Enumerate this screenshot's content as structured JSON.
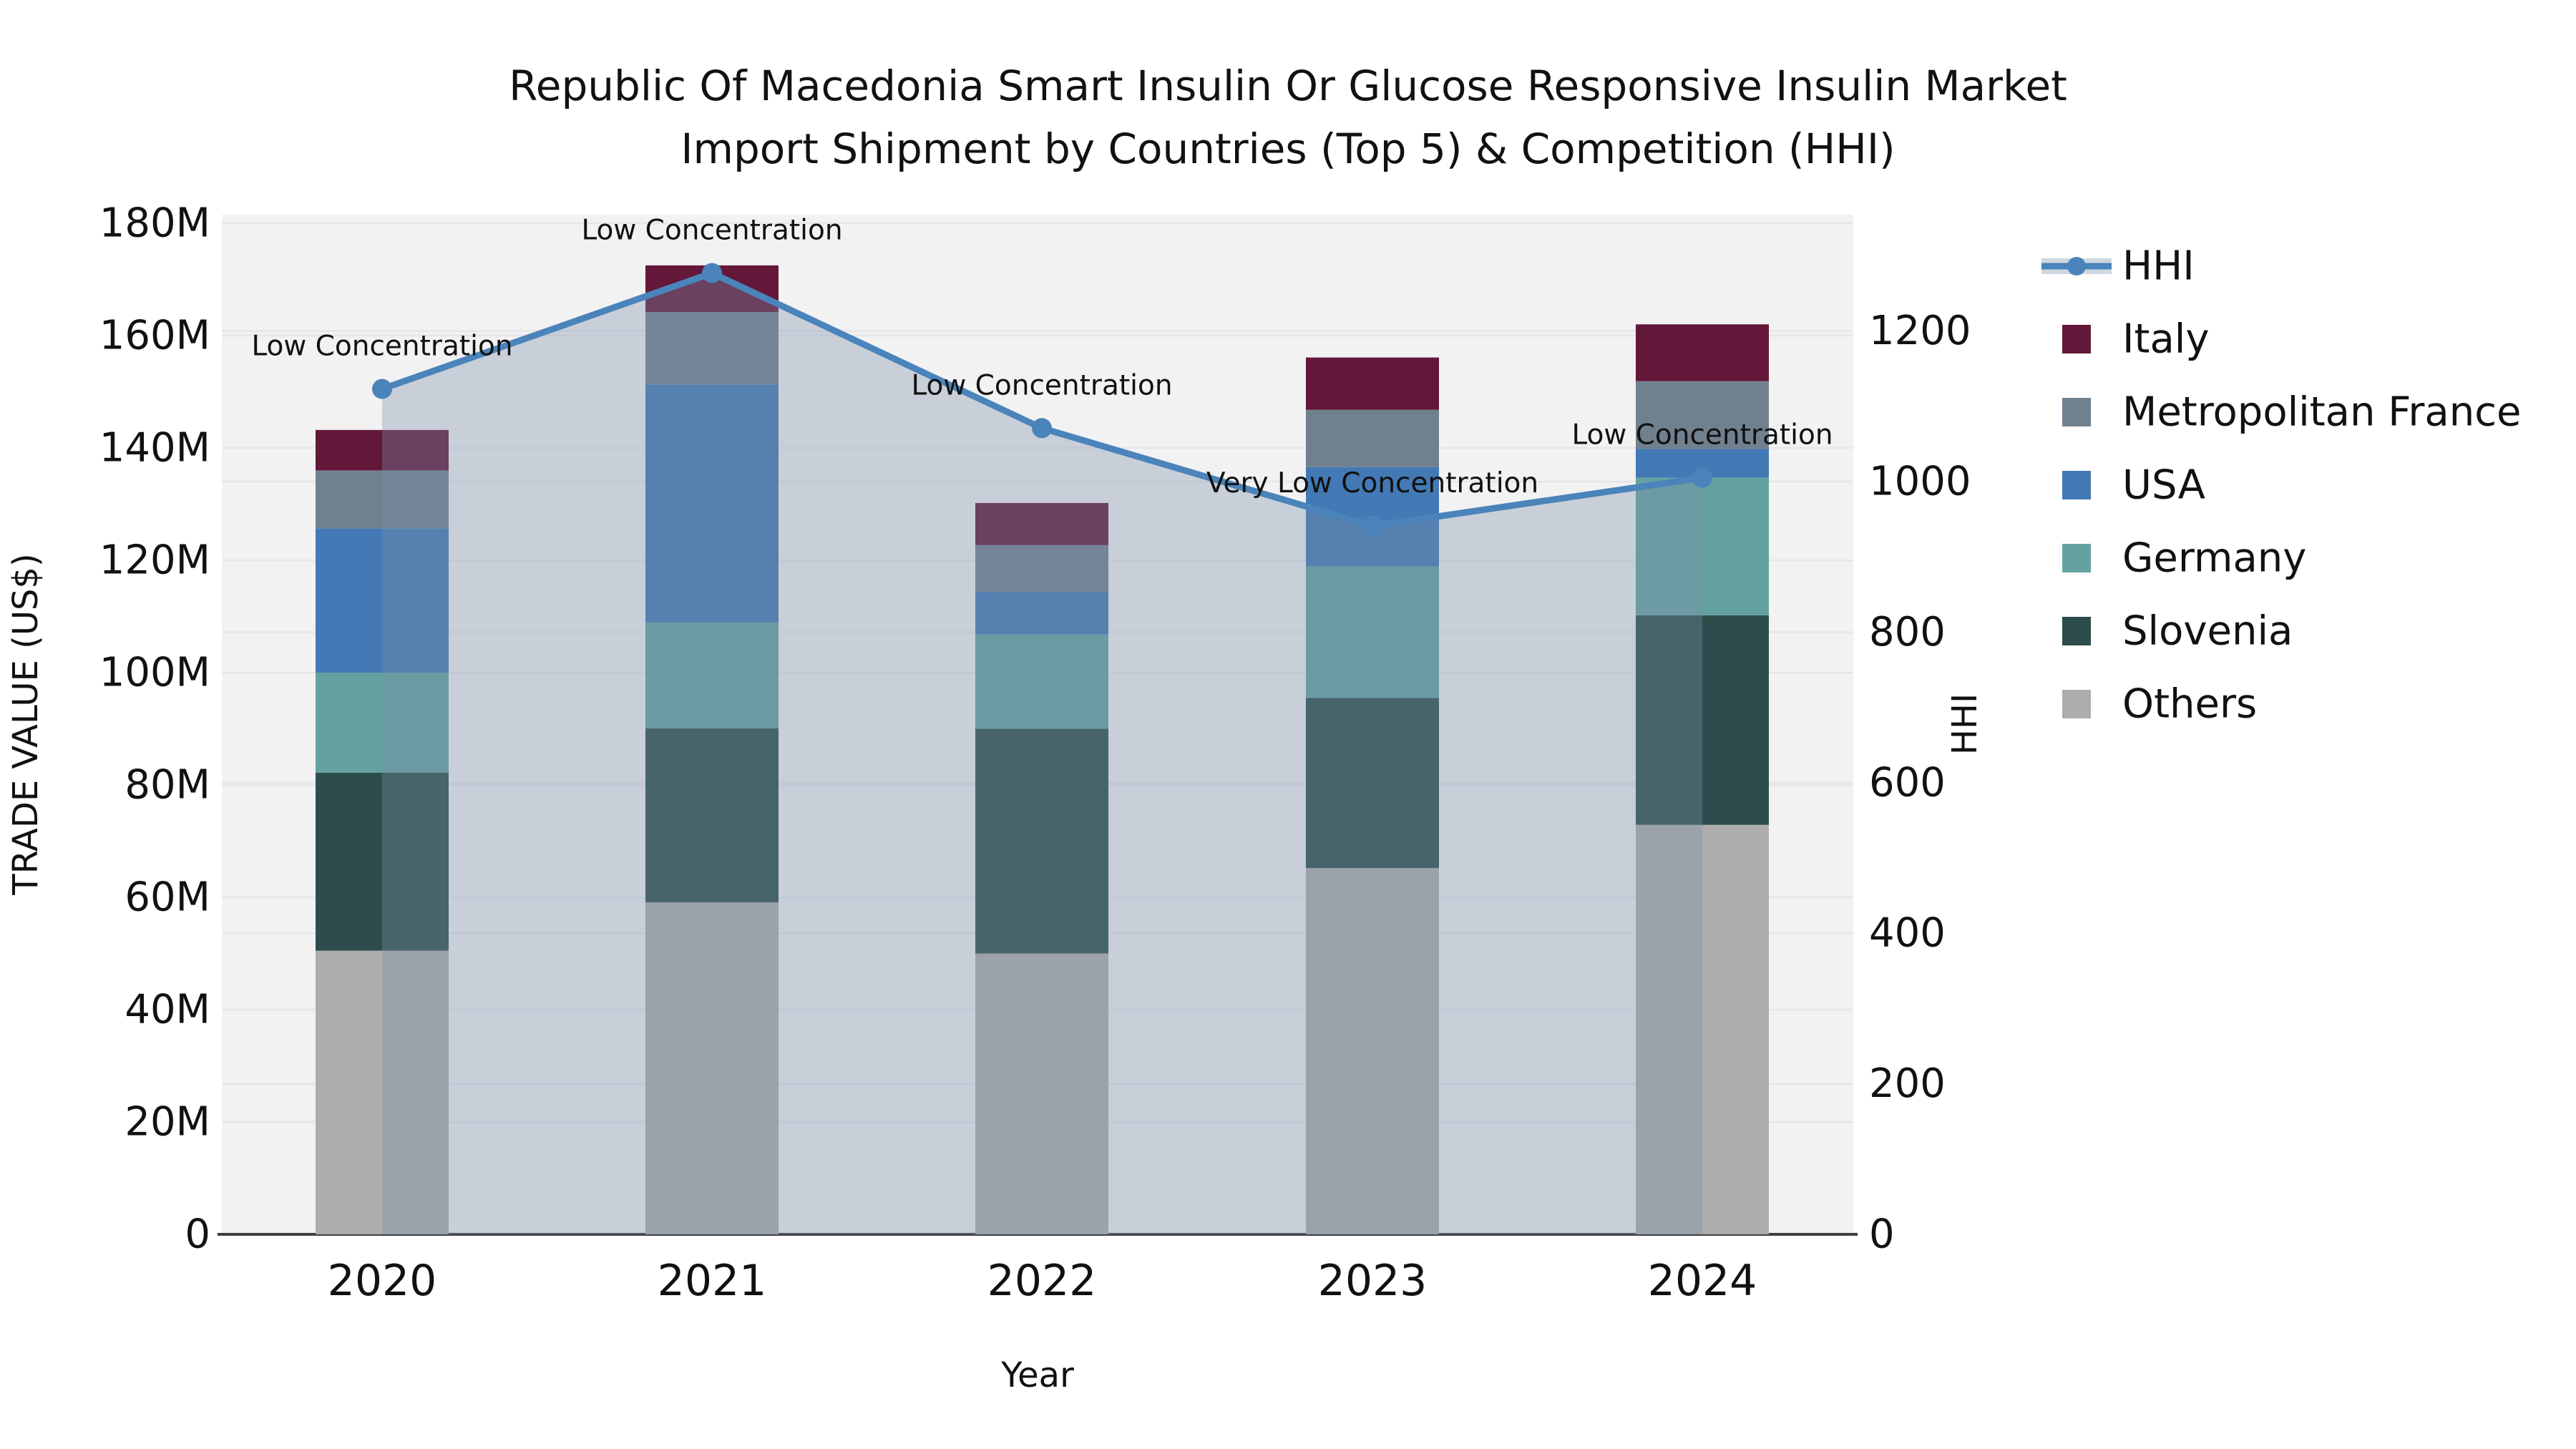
{
  "title": {
    "line1": "Republic Of Macedonia Smart Insulin Or Glucose Responsive Insulin Market",
    "line2": "Import Shipment by Countries (Top 5) & Competition (HHI)"
  },
  "axes": {
    "y_left": {
      "label": "TRADE VALUE (US$)",
      "ticks": [
        "0",
        "20M",
        "40M",
        "60M",
        "80M",
        "100M",
        "120M",
        "140M",
        "160M",
        "180M"
      ],
      "tick_values": [
        0,
        20,
        40,
        60,
        80,
        100,
        120,
        140,
        160,
        180
      ]
    },
    "y_right": {
      "label": "HHI",
      "ticks": [
        "0",
        "200",
        "400",
        "600",
        "800",
        "1000",
        "1200"
      ],
      "tick_values": [
        0,
        200,
        400,
        600,
        800,
        1000,
        1200
      ]
    },
    "x": {
      "label": "Year",
      "ticks": [
        "2020",
        "2021",
        "2022",
        "2023",
        "2024"
      ]
    }
  },
  "chart_data": {
    "type": "bar",
    "subtype": "stacked-bars-with-line",
    "categories": [
      "2020",
      "2021",
      "2022",
      "2023",
      "2024"
    ],
    "value_unit": "M US$",
    "series": [
      {
        "name": "Others",
        "color": "#adadab",
        "values": [
          50.5,
          59.1,
          50.0,
          65.2,
          72.9
        ]
      },
      {
        "name": "Slovenia",
        "color": "#2c4d4b",
        "values": [
          31.7,
          31.0,
          40.0,
          30.3,
          37.3
        ]
      },
      {
        "name": "Germany",
        "color": "#64a2a1",
        "values": [
          17.8,
          18.8,
          16.8,
          23.4,
          24.5
        ]
      },
      {
        "name": "USA",
        "color": "#4379b4",
        "values": [
          25.7,
          42.4,
          7.6,
          17.7,
          5.1
        ]
      },
      {
        "name": "Metropolitan France",
        "color": "#71808f",
        "values": [
          10.3,
          12.9,
          8.3,
          10.2,
          12.1
        ]
      },
      {
        "name": "Italy",
        "color": "#631839",
        "values": [
          7.2,
          8.3,
          7.5,
          9.3,
          10.1
        ]
      }
    ],
    "totals": [
      143.2,
      172.5,
      130.2,
      156.1,
      162.0
    ],
    "line": {
      "name": "HHI",
      "color": "#4a84bb",
      "values": [
        1123,
        1277,
        1071,
        941,
        1005
      ]
    },
    "annotations": [
      {
        "category": "2020",
        "text": "Low Concentration"
      },
      {
        "category": "2021",
        "text": "Low Concentration"
      },
      {
        "category": "2022",
        "text": "Low Concentration"
      },
      {
        "category": "2023",
        "text": "Very Low Concentration"
      },
      {
        "category": "2024",
        "text": "Low Concentration"
      }
    ],
    "ylim_left": [
      0,
      180
    ],
    "ylim_right": [
      0,
      1295
    ],
    "grid": true,
    "legend_position": "right"
  },
  "legend": {
    "items": [
      {
        "label": "HHI",
        "type": "line"
      },
      {
        "label": "Italy",
        "type": "box"
      },
      {
        "label": "Metropolitan France",
        "type": "box"
      },
      {
        "label": "USA",
        "type": "box"
      },
      {
        "label": "Germany",
        "type": "box"
      },
      {
        "label": "Slovenia",
        "type": "box"
      },
      {
        "label": "Others",
        "type": "box"
      }
    ]
  },
  "colors": {
    "plot_background": "#f2f2f3",
    "gridline": "#e6e6e9",
    "axis_line": "#3f3f3f",
    "area_fill": "rgba(122,143,170,0.35)",
    "legend_band": "#d0d7e0",
    "text": "#111111"
  }
}
